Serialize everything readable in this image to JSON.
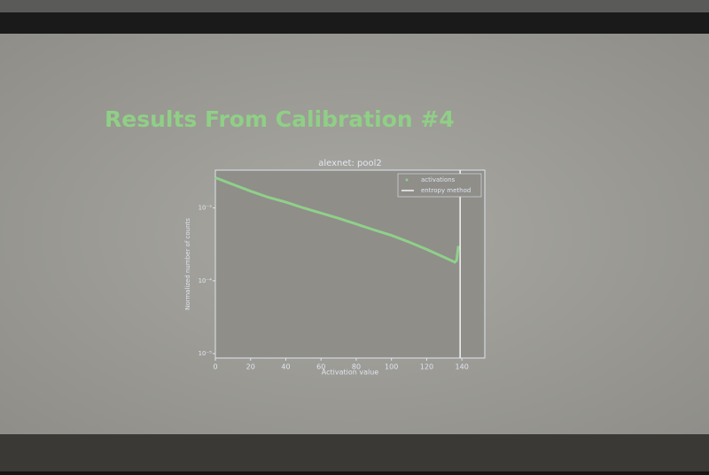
{
  "slide": {
    "title": "Results From Calibration #4"
  },
  "chart_data": {
    "type": "line",
    "title": "alexnet: pool2",
    "xlabel": "Activation value",
    "ylabel": "Normalized number of counts",
    "log_y": true,
    "legend": "upper right",
    "xlim": [
      0,
      153
    ],
    "ylim": [
      8.7e-06,
      0.0033
    ],
    "xticks": [
      0,
      20,
      40,
      60,
      80,
      100,
      120,
      140
    ],
    "yticks": [
      {
        "value": 1e-05,
        "label": "10⁻⁵"
      },
      {
        "value": 0.0001,
        "label": "10⁻⁴"
      },
      {
        "value": 0.001,
        "label": "10⁻³"
      }
    ],
    "series": [
      {
        "name": "activations",
        "color": "#8fd08a",
        "x": [
          0,
          10,
          20,
          30,
          40,
          50,
          60,
          70,
          80,
          90,
          100,
          110,
          120,
          130,
          136,
          137,
          138
        ],
        "values": [
          0.0026,
          0.0021,
          0.0017,
          0.0014,
          0.0012,
          0.001,
          0.00085,
          0.00072,
          0.0006,
          0.0005,
          0.00042,
          0.00034,
          0.00027,
          0.00021,
          0.00018,
          0.00019,
          0.0003
        ]
      }
    ],
    "threshold": {
      "name": "entropy method",
      "x": 139,
      "color": "#f2f4f8"
    }
  }
}
